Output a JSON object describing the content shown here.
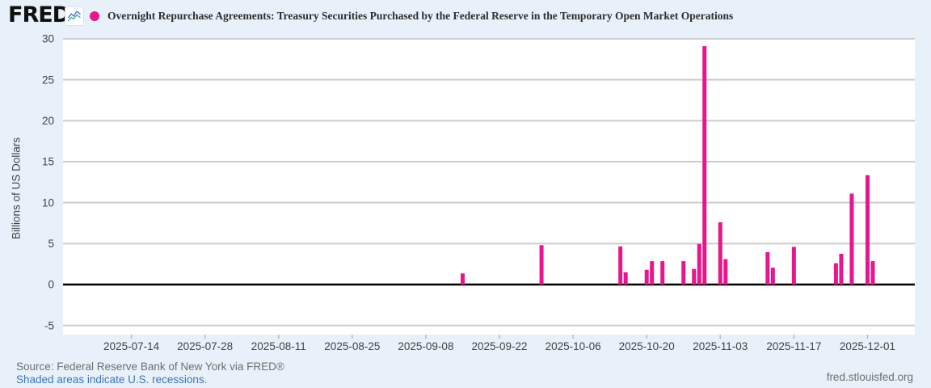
{
  "header": {
    "logo_text": "FRED",
    "logo_reg_mark": "®",
    "title": "Overnight Repurchase Agreements: Treasury Securities Purchased by the Federal Reserve in the Temporary Open Market Operations"
  },
  "chart_data": {
    "type": "bar",
    "title": "Overnight Repurchase Agreements: Treasury Securities Purchased by the Federal Reserve in the Temporary Open Market Operations",
    "xlabel": "",
    "ylabel": "Billions of US Dollars",
    "ylim": [
      -5,
      30
    ],
    "yticks": [
      30,
      25,
      20,
      15,
      10,
      5,
      0,
      -5
    ],
    "x_domain": [
      "2025-07-01",
      "2025-12-10"
    ],
    "xticks": [
      "2025-07-14",
      "2025-07-28",
      "2025-08-11",
      "2025-08-25",
      "2025-09-08",
      "2025-09-22",
      "2025-10-06",
      "2025-10-20",
      "2025-11-03",
      "2025-11-17",
      "2025-12-01"
    ],
    "grid": true,
    "legend_position": "top",
    "series": [
      {
        "name": "Overnight Repurchase Agreements: Treasury Securities Purchased by the Federal Reserve in the Temporary Open Market Operations",
        "points": [
          [
            "2025-09-15",
            1.35
          ],
          [
            "2025-09-30",
            4.8
          ],
          [
            "2025-10-15",
            4.65
          ],
          [
            "2025-10-16",
            1.5
          ],
          [
            "2025-10-20",
            1.8
          ],
          [
            "2025-10-21",
            2.85
          ],
          [
            "2025-10-23",
            2.85
          ],
          [
            "2025-10-27",
            2.85
          ],
          [
            "2025-10-29",
            1.9
          ],
          [
            "2025-10-30",
            4.95
          ],
          [
            "2025-10-31",
            29.1
          ],
          [
            "2025-11-03",
            7.6
          ],
          [
            "2025-11-04",
            3.1
          ],
          [
            "2025-11-12",
            3.95
          ],
          [
            "2025-11-13",
            2.05
          ],
          [
            "2025-11-17",
            4.6
          ],
          [
            "2025-11-25",
            2.6
          ],
          [
            "2025-11-26",
            3.75
          ],
          [
            "2025-11-28",
            11.1
          ],
          [
            "2025-12-01",
            13.35
          ],
          [
            "2025-12-02",
            2.85
          ]
        ]
      }
    ]
  },
  "footer": {
    "source_line": "Source: Federal Reserve Bank of New York via FRED®",
    "recession_note": "Shaded areas indicate U.S. recessions.",
    "site_link": "fred.stlouisfed.org"
  },
  "colors": {
    "background": "#e8f1fa",
    "plot_background": "#ffffff",
    "grid": "#cccccc",
    "zero_line": "#000000",
    "bar": "#e6168c",
    "axis_text": "#424242",
    "title_text": "#2e2e2e",
    "source_text": "#6e6e6e",
    "link_blue": "#3e74b8",
    "tick_mark": "#b3bcc9",
    "logo_chart_blue": "#3f5fb7",
    "logo_chart_teal": "#2aa198"
  }
}
